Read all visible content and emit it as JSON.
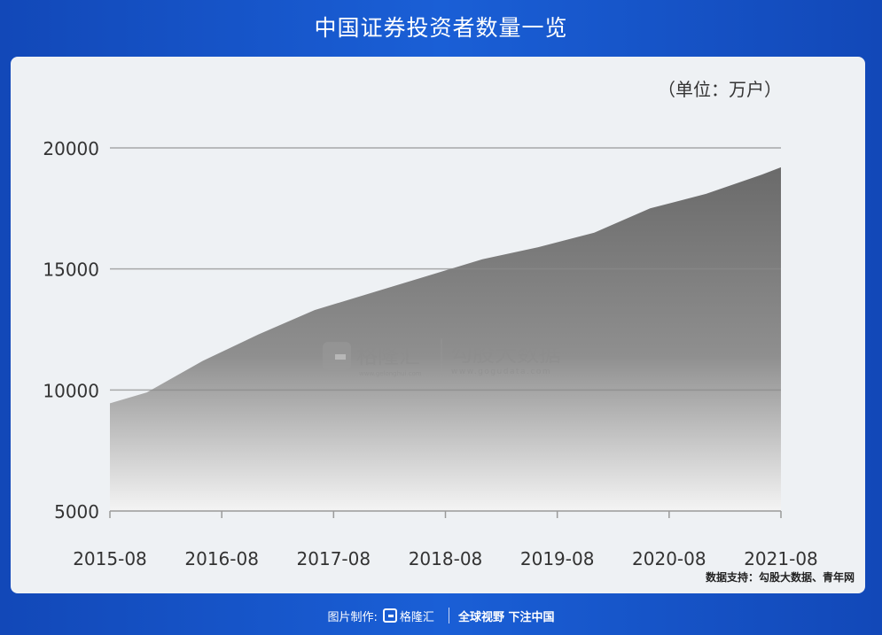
{
  "header": {
    "title": "中国证券投资者数量一览"
  },
  "chart_data": {
    "type": "area",
    "unit_note": "（单位：万户）",
    "x_ticks": [
      "2015-08",
      "2016-08",
      "2017-08",
      "2018-08",
      "2019-08",
      "2020-08",
      "2021-08"
    ],
    "y_ticks": [
      5000,
      10000,
      15000,
      20000
    ],
    "ylim": [
      5000,
      20000
    ],
    "grid": true,
    "x": [
      2015.67,
      2016.0,
      2016.5,
      2017.0,
      2017.5,
      2018.0,
      2018.5,
      2019.0,
      2019.5,
      2020.0,
      2020.5,
      2021.0,
      2021.5,
      2021.67
    ],
    "values": [
      9450,
      9900,
      11200,
      12300,
      13300,
      14000,
      14700,
      15400,
      15900,
      16500,
      17500,
      18100,
      18900,
      19200
    ],
    "source": "数据支持：勾股大数据、青年网"
  },
  "watermark": {
    "brand1": "格隆汇",
    "brand1_url": "www.gelonghui.com",
    "brand2": "勾股大数据",
    "brand2_url": "www.gogudata.com"
  },
  "footer": {
    "made_by": "图片制作:",
    "logo_text": "格隆汇",
    "slogan": "全球视野 下注中国"
  },
  "colors": {
    "background": "#1a5fd6",
    "card": "#eef1f4",
    "area_top": "#6e6e6e",
    "area_bottom": "#f2f2f2"
  }
}
